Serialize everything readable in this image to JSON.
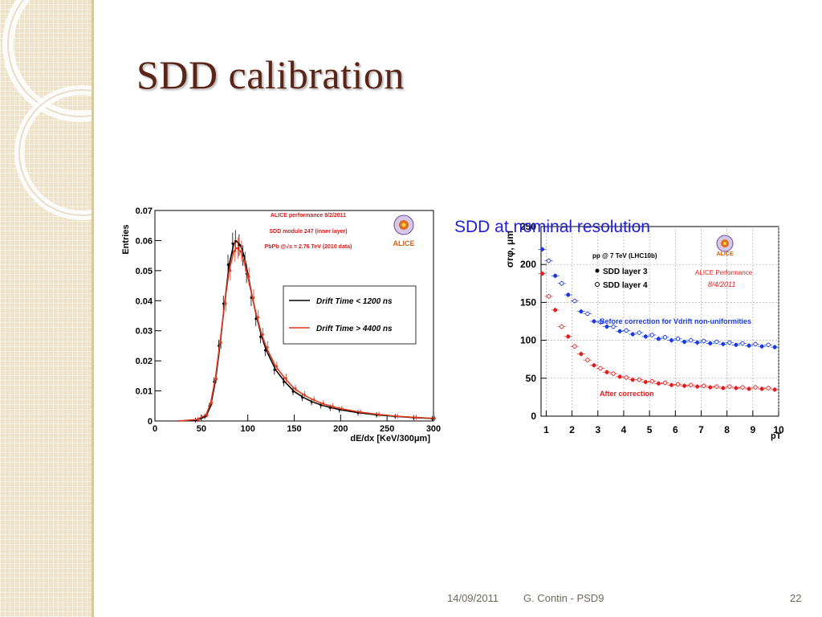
{
  "slide": {
    "title": "SDD calibration",
    "overlay_label": "SDD at nominal resolution"
  },
  "footer": {
    "date": "14/09/2011",
    "author": "G. Contin - PSD9",
    "page": "22"
  },
  "chart_data": [
    {
      "type": "line",
      "xlabel": "dE/dx [KeV/300μm]",
      "ylabel": "Entries",
      "xlim": [
        0,
        300
      ],
      "ylim": [
        0,
        0.07
      ],
      "x_ticks": [
        0,
        50,
        100,
        150,
        200,
        250,
        300
      ],
      "x_tick_labels": [
        "0",
        "50",
        "100",
        "150",
        "200",
        "250",
        "300"
      ],
      "y_ticks": [
        0,
        0.01,
        0.02,
        0.03,
        0.04,
        0.05,
        0.06,
        0.07
      ],
      "y_tick_labels": [
        "0",
        "0.01",
        "0.02",
        "0.03",
        "0.04",
        "0.05",
        "0.06",
        "0.07"
      ],
      "annotations": [
        "ALICE performance 9/2/2011",
        "SDD module 247 (inner layer)",
        "PbPb @√s = 2.76 TeV (2010 data)"
      ],
      "logo_text": "ALICE",
      "legend_position": "center-right",
      "series": [
        {
          "name": "Drift Time < 1200 ns",
          "color": "#000000",
          "x": [
            25,
            45,
            55,
            60,
            65,
            70,
            75,
            80,
            85,
            88,
            92,
            96,
            100,
            105,
            110,
            115,
            120,
            130,
            140,
            150,
            160,
            170,
            180,
            190,
            200,
            220,
            240,
            260,
            280,
            300
          ],
          "y": [
            0,
            0.0003,
            0.0015,
            0.005,
            0.013,
            0.025,
            0.039,
            0.052,
            0.059,
            0.0598,
            0.0585,
            0.055,
            0.049,
            0.041,
            0.034,
            0.028,
            0.0235,
            0.017,
            0.013,
            0.0098,
            0.0078,
            0.0063,
            0.0052,
            0.0044,
            0.0037,
            0.0027,
            0.002,
            0.0015,
            0.0011,
            0.0008
          ]
        },
        {
          "name": "Drift Time > 4400 ns",
          "color": "#e03a20",
          "x": [
            25,
            45,
            55,
            60,
            65,
            70,
            75,
            80,
            85,
            88,
            92,
            96,
            100,
            105,
            110,
            115,
            120,
            130,
            140,
            150,
            160,
            170,
            180,
            190,
            200,
            220,
            240,
            260,
            280,
            300
          ],
          "y": [
            0,
            0.0005,
            0.002,
            0.006,
            0.014,
            0.026,
            0.039,
            0.05,
            0.0565,
            0.0575,
            0.0565,
            0.053,
            0.048,
            0.041,
            0.0345,
            0.0288,
            0.0245,
            0.0182,
            0.0142,
            0.0108,
            0.0087,
            0.0071,
            0.0058,
            0.0049,
            0.0041,
            0.003,
            0.0022,
            0.0016,
            0.0012,
            0.0009
          ]
        }
      ]
    },
    {
      "type": "scatter",
      "xlabel": "pT",
      "ylabel": "σrφ, μm",
      "xlim": [
        0.8,
        10
      ],
      "ylim": [
        0,
        250
      ],
      "x_ticks": [
        1,
        2,
        3,
        4,
        5,
        6,
        7,
        8,
        9,
        10
      ],
      "x_tick_labels": [
        "1",
        "2",
        "3",
        "4",
        "5",
        "6",
        "7",
        "8",
        "9",
        "10"
      ],
      "y_ticks": [
        0,
        50,
        100,
        150,
        200,
        250
      ],
      "y_tick_labels": [
        "0",
        "50",
        "100",
        "150",
        "200",
        "250"
      ],
      "grid": true,
      "annotations": [
        "pp @ 7 TeV (LHC10b)",
        "ALICE Performance",
        "8/4/2011",
        "Before correction for Vdrift non-uniformities",
        "After correction"
      ],
      "logo_text": "ALICE",
      "legend": [
        "SDD layer 3",
        "SDD layer 4"
      ],
      "legend_position": "top-left",
      "series": [
        {
          "name": "SDD layer 3",
          "correction": "before",
          "color": "#1a3ae0",
          "filled": true,
          "x": [
            0.85,
            1.35,
            1.85,
            2.35,
            2.85,
            3.35,
            3.85,
            4.35,
            4.85,
            5.35,
            5.85,
            6.35,
            6.85,
            7.35,
            7.85,
            8.35,
            8.85,
            9.35,
            9.85
          ],
          "y": [
            220,
            185,
            160,
            138,
            125,
            118,
            112,
            108,
            105,
            102,
            100,
            98,
            97,
            96,
            95,
            94,
            93,
            92,
            91
          ]
        },
        {
          "name": "SDD layer 4",
          "correction": "before",
          "color": "#1a3ae0",
          "filled": false,
          "x": [
            1.1,
            1.6,
            2.1,
            2.6,
            3.1,
            3.6,
            4.1,
            4.6,
            5.1,
            5.6,
            6.1,
            6.6,
            7.1,
            7.6,
            8.1,
            8.6,
            9.1,
            9.6
          ],
          "y": [
            205,
            175,
            152,
            135,
            124,
            118,
            113,
            110,
            107,
            104,
            102,
            100,
            99,
            98,
            97,
            96,
            95,
            94
          ]
        },
        {
          "name": "SDD layer 3",
          "correction": "after",
          "color": "#e02020",
          "filled": true,
          "x": [
            0.85,
            1.35,
            1.85,
            2.35,
            2.85,
            3.35,
            3.85,
            4.35,
            4.85,
            5.35,
            5.85,
            6.35,
            6.85,
            7.35,
            7.85,
            8.35,
            8.85,
            9.35,
            9.85
          ],
          "y": [
            188,
            140,
            105,
            82,
            67,
            58,
            52,
            48,
            45,
            43,
            41,
            40,
            39,
            38,
            37,
            37,
            36,
            36,
            35
          ]
        },
        {
          "name": "SDD layer 4",
          "correction": "after",
          "color": "#e02020",
          "filled": false,
          "x": [
            1.1,
            1.6,
            2.1,
            2.6,
            3.1,
            3.6,
            4.1,
            4.6,
            5.1,
            5.6,
            6.1,
            6.6,
            7.1,
            7.6,
            8.1,
            8.6,
            9.1,
            9.6
          ],
          "y": [
            158,
            118,
            92,
            74,
            63,
            56,
            51,
            48,
            46,
            44,
            42,
            41,
            40,
            39,
            39,
            38,
            38,
            37
          ]
        }
      ]
    }
  ]
}
